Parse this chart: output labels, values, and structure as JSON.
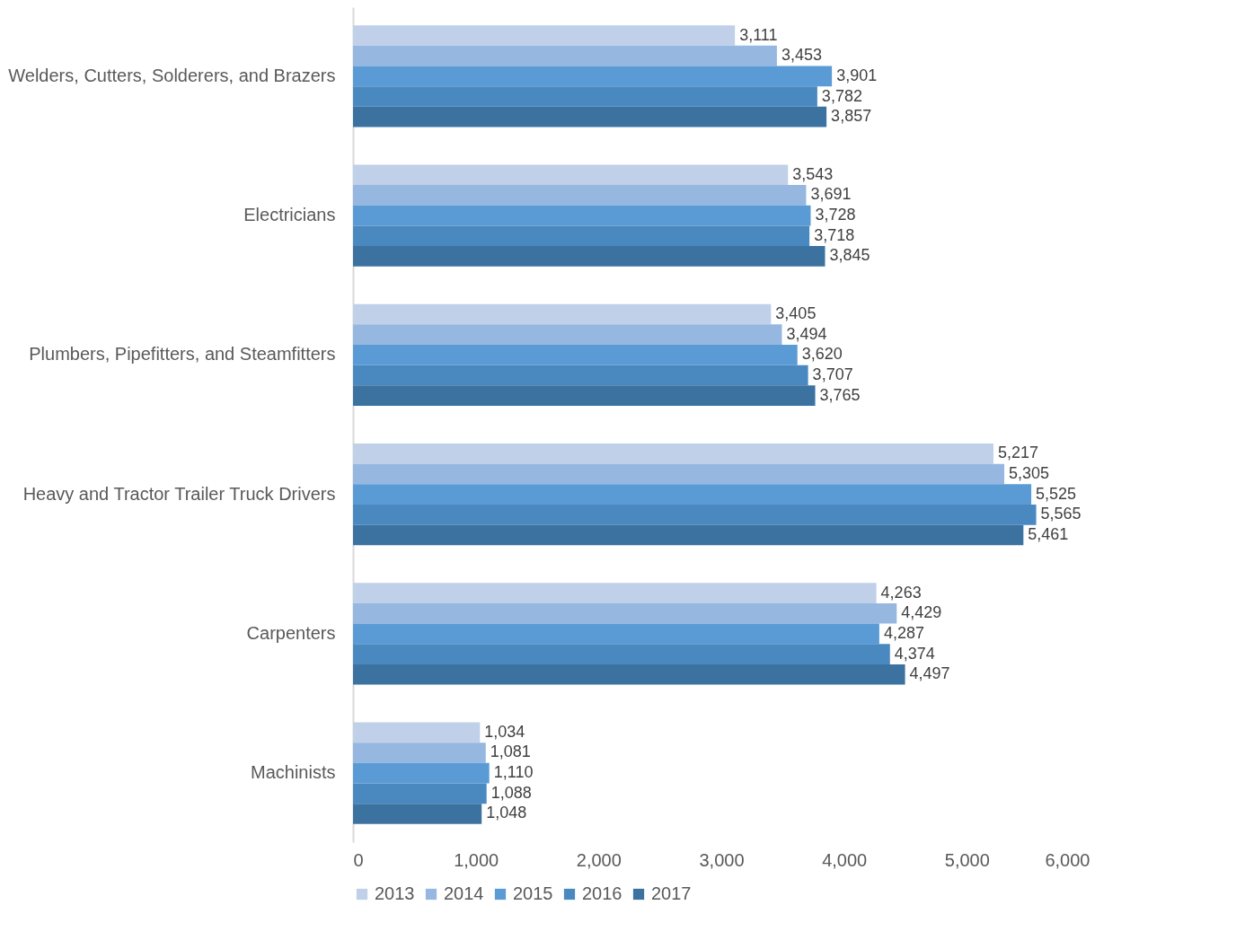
{
  "chart_data": {
    "type": "bar",
    "orientation": "horizontal",
    "categories": [
      "Welders, Cutters, Solderers, and Brazers",
      "Electricians",
      "Plumbers, Pipefitters, and Steamfitters",
      "Heavy and Tractor Trailer Truck Drivers",
      "Carpenters",
      "Machinists"
    ],
    "series": [
      {
        "name": "2013",
        "color": "#bfd0e8",
        "values": [
          3111,
          3543,
          3405,
          5217,
          4263,
          1034
        ],
        "value_labels": [
          "3,111",
          "3,543",
          "3,405",
          "5,217",
          "4,263",
          "1,034"
        ]
      },
      {
        "name": "2014",
        "color": "#95b7e0",
        "values": [
          3453,
          3691,
          3494,
          5305,
          4429,
          1081
        ],
        "value_labels": [
          "3,453",
          "3,691",
          "3,494",
          "5,305",
          "4,429",
          "1,081"
        ]
      },
      {
        "name": "2015",
        "color": "#5b9bd5",
        "values": [
          3901,
          3728,
          3620,
          5525,
          4287,
          1110
        ],
        "value_labels": [
          "3,901",
          "3,728",
          "3,620",
          "5,525",
          "4,287",
          "1,110"
        ]
      },
      {
        "name": "2016",
        "color": "#4a89c0",
        "values": [
          3782,
          3718,
          3707,
          5565,
          4374,
          1088
        ],
        "value_labels": [
          "3,782",
          "3,718",
          "3,707",
          "5,565",
          "4,374",
          "1,088"
        ]
      },
      {
        "name": "2017",
        "color": "#3c72a0",
        "values": [
          3857,
          3845,
          3765,
          5461,
          4497,
          1048
        ],
        "value_labels": [
          "3,857",
          "3,845",
          "3,765",
          "5,461",
          "4,497",
          "1,048"
        ]
      }
    ],
    "xlim": [
      0,
      6000
    ],
    "xticks": [
      0,
      {
        "value": 1000,
        "label": "1,000"
      },
      {
        "value": 2000,
        "label": "2,000"
      },
      {
        "value": 3000,
        "label": "3,000"
      },
      {
        "value": 4000,
        "label": "4,000"
      },
      {
        "value": 5000,
        "label": "5,000"
      },
      {
        "value": 6000,
        "label": "6,000"
      }
    ],
    "grid": false,
    "legend": "bottom"
  }
}
